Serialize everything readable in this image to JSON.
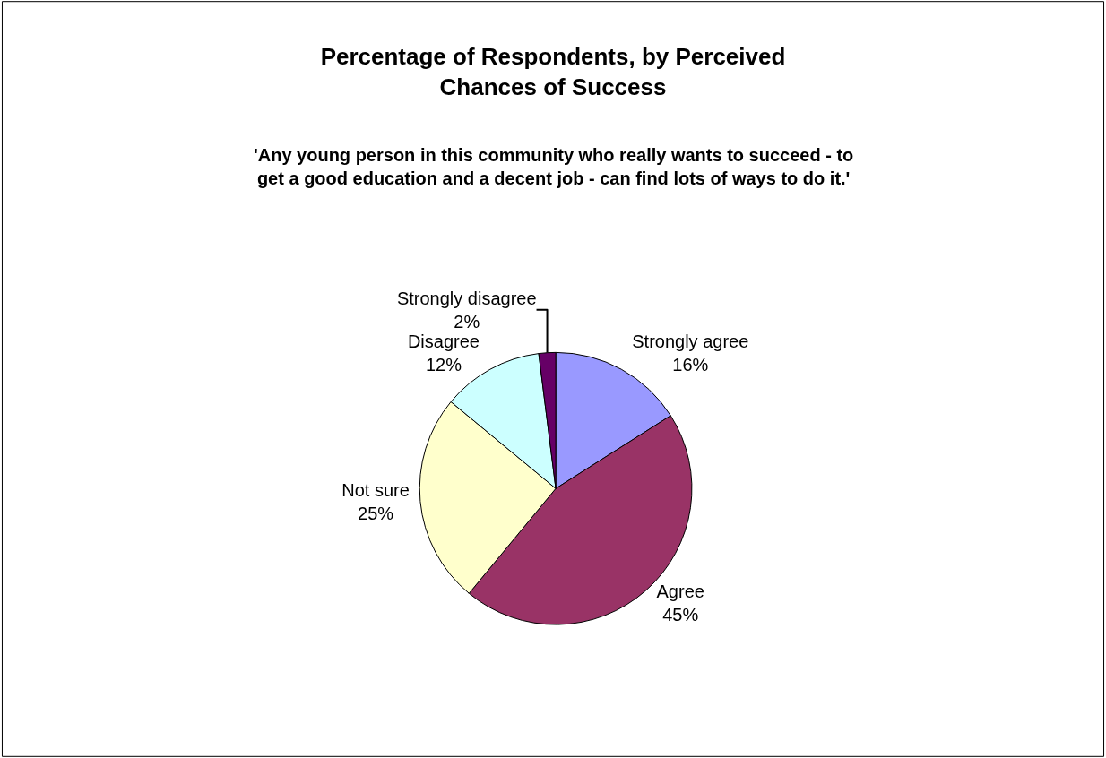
{
  "chart_data": {
    "type": "pie",
    "title": "Percentage of Respondents, by Perceived\nChances of Success",
    "subtitle": "'Any young person in this community who really wants to succeed - to\nget a good education and a decent job - can find lots of ways to do it.'",
    "categories": [
      "Strongly agree",
      "Agree",
      "Not sure",
      "Disagree",
      "Strongly disagree"
    ],
    "values": [
      16,
      45,
      25,
      12,
      2
    ],
    "value_labels": [
      "16%",
      "45%",
      "25%",
      "12%",
      "2%"
    ],
    "colors": [
      "#9999ff",
      "#993366",
      "#ffffcc",
      "#ccffff",
      "#660066"
    ],
    "legend": false
  }
}
